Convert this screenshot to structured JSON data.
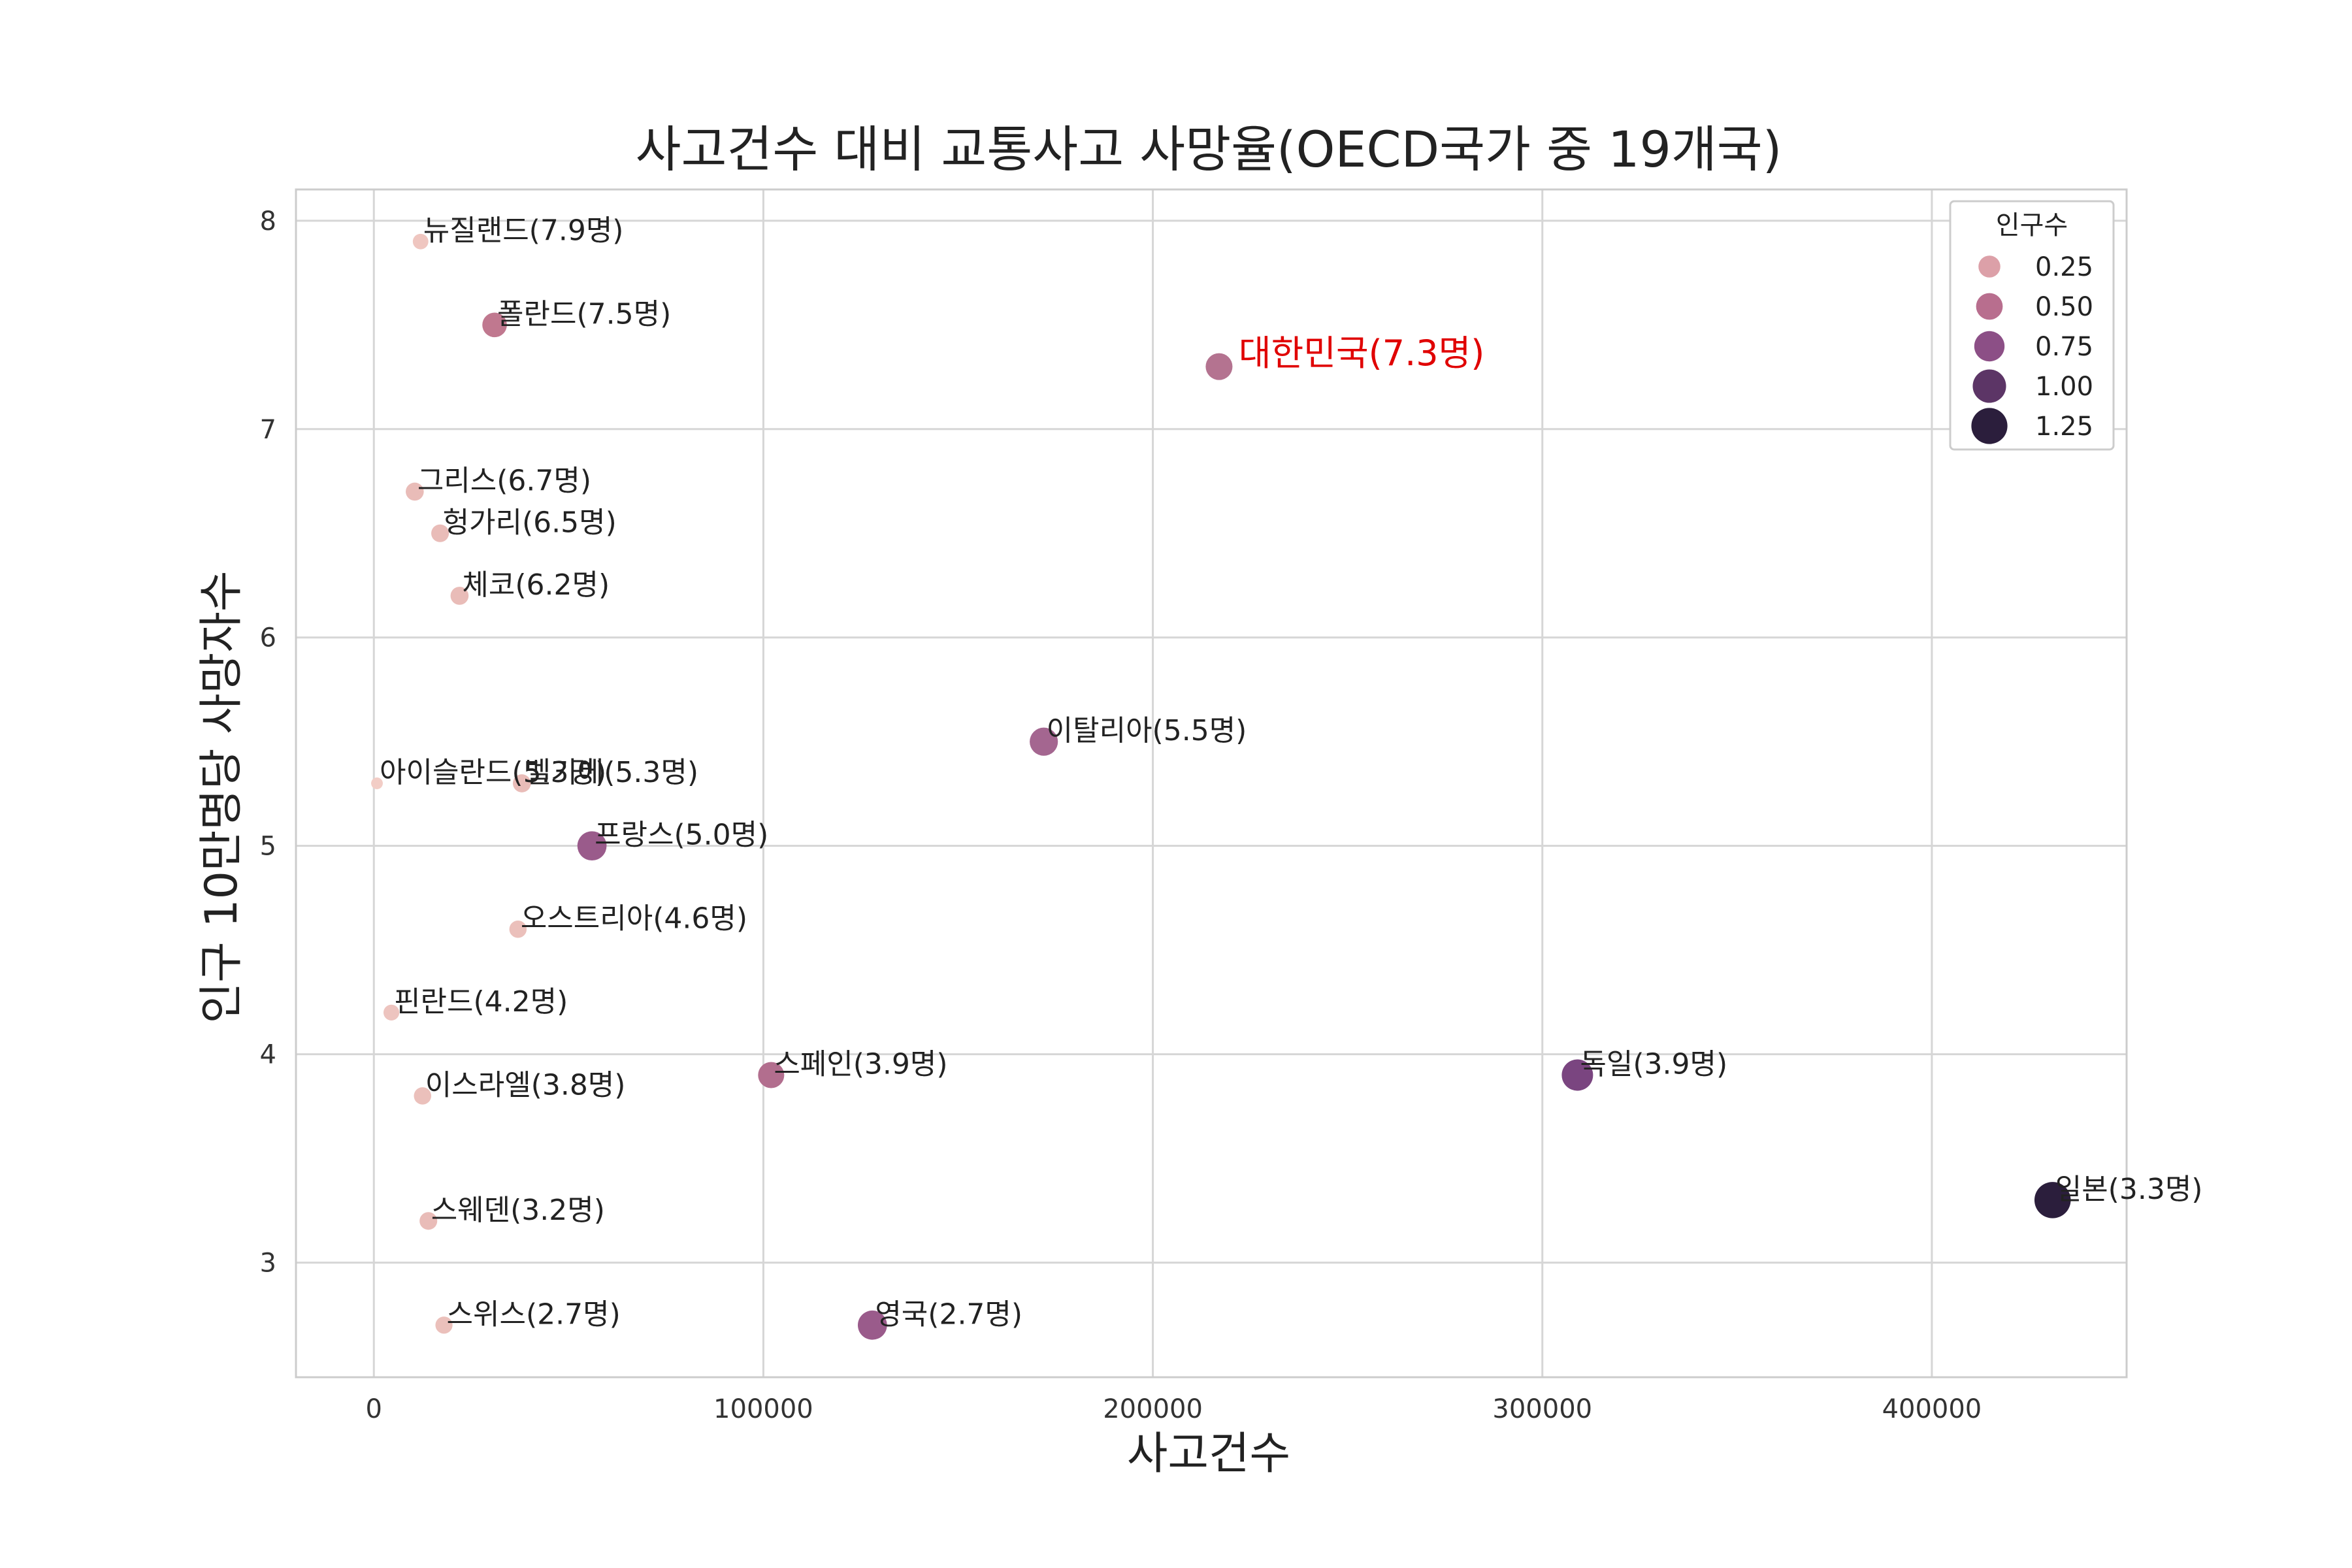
{
  "chart_data": {
    "type": "scatter",
    "title": "사고건수 대비 교통사고 사망율(OECD국가 중 19개국)",
    "xlabel": "사고건수",
    "ylabel": "인구 10만명당 사망자수",
    "xlim": [
      -20000,
      450000
    ],
    "ylim": [
      2.45,
      8.15
    ],
    "xticks": [
      0,
      100000,
      200000,
      300000,
      400000
    ],
    "yticks": [
      3,
      4,
      5,
      6,
      7,
      8
    ],
    "grid": true,
    "legend": {
      "title": "인구수",
      "placement": "top-right",
      "entries": [
        {
          "label": "0.25",
          "value": 0.25,
          "color": "#dca0a8"
        },
        {
          "label": "0.50",
          "value": 0.5,
          "color": "#b86e8e"
        },
        {
          "label": "0.75",
          "value": 0.75,
          "color": "#8c4f86"
        },
        {
          "label": "1.00",
          "value": 1.0,
          "color": "#5c3566"
        },
        {
          "label": "1.25",
          "value": 1.25,
          "color": "#2b1e3c"
        }
      ]
    },
    "points": [
      {
        "label": "뉴질랜드(7.9명)",
        "x": 12000,
        "y": 7.9,
        "size": 0.05,
        "color": "#efc6c0"
      },
      {
        "label": "폴란드(7.5명)",
        "x": 31000,
        "y": 7.5,
        "size": 0.38,
        "color": "#c0788f"
      },
      {
        "label": "대한민국(7.3명)",
        "x": 217000,
        "y": 7.3,
        "size": 0.51,
        "color": "#b47390",
        "highlight": true
      },
      {
        "label": "그리스(6.7명)",
        "x": 10500,
        "y": 6.7,
        "size": 0.11,
        "color": "#e9bcb8"
      },
      {
        "label": "헝가리(6.5명)",
        "x": 17000,
        "y": 6.5,
        "size": 0.1,
        "color": "#e9bcb8"
      },
      {
        "label": "체코(6.2명)",
        "x": 22000,
        "y": 6.2,
        "size": 0.11,
        "color": "#e9bcb8"
      },
      {
        "label": "아이슬란드(5.3명)",
        "x": 800,
        "y": 5.3,
        "size": 0.003,
        "color": "#f2cdc6"
      },
      {
        "label": "벨기에(5.3명)",
        "x": 38000,
        "y": 5.3,
        "size": 0.11,
        "color": "#e9bcb8"
      },
      {
        "label": "이탈리아(5.5명)",
        "x": 172000,
        "y": 5.5,
        "size": 0.6,
        "color": "#a46690"
      },
      {
        "label": "프랑스(5.0명)",
        "x": 56000,
        "y": 5.0,
        "size": 0.67,
        "color": "#9a5b8b"
      },
      {
        "label": "오스트리아(4.6명)",
        "x": 37000,
        "y": 4.6,
        "size": 0.09,
        "color": "#ebc0bb"
      },
      {
        "label": "핀란드(4.2명)",
        "x": 4500,
        "y": 4.2,
        "size": 0.055,
        "color": "#edc4bf"
      },
      {
        "label": "이스라엘(3.8명)",
        "x": 12500,
        "y": 3.8,
        "size": 0.09,
        "color": "#ebc0bb"
      },
      {
        "label": "스페인(3.9명)",
        "x": 102000,
        "y": 3.9,
        "size": 0.47,
        "color": "#b26e8e"
      },
      {
        "label": "독일(3.9명)",
        "x": 309000,
        "y": 3.9,
        "size": 0.83,
        "color": "#7a4580"
      },
      {
        "label": "스웨덴(3.2명)",
        "x": 14000,
        "y": 3.2,
        "size": 0.1,
        "color": "#e9bcb8"
      },
      {
        "label": "일본(3.3명)",
        "x": 431000,
        "y": 3.3,
        "size": 1.27,
        "color": "#2b1e3c"
      },
      {
        "label": "스위스(2.7명)",
        "x": 18000,
        "y": 2.7,
        "size": 0.085,
        "color": "#ebc0bb"
      },
      {
        "label": "영국(2.7명)",
        "x": 128000,
        "y": 2.7,
        "size": 0.67,
        "color": "#9a5b8b"
      }
    ]
  }
}
